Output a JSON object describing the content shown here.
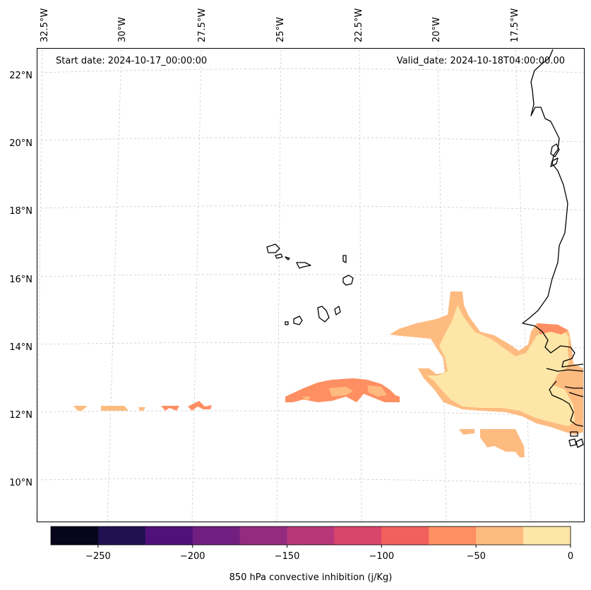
{
  "header": {
    "start_date": "Start date: 2024-10-17_00:00:00",
    "valid_date": "Valid_date: 2024-10-18T04:00:00.00"
  },
  "axes": {
    "longitude_labels": [
      "32.5°W",
      "30°W",
      "27.5°W",
      "25°W",
      "22.5°W",
      "20°W",
      "17.5°W"
    ],
    "latitude_labels": [
      "22°N",
      "20°N",
      "18°N",
      "16°N",
      "14°N",
      "12°N",
      "10°N"
    ]
  },
  "colorbar": {
    "title": "850 hPa convective inhibition (j/Kg)",
    "tick_labels": [
      "−250",
      "−200",
      "−150",
      "−100",
      "−50",
      "0"
    ],
    "levels": [
      -275,
      -250,
      -225,
      -200,
      -175,
      -150,
      -125,
      -100,
      -75,
      -50,
      -25,
      0
    ],
    "colors": [
      "#07051d",
      "#221150",
      "#4f117b",
      "#711f81",
      "#932b80",
      "#b73779",
      "#d9466b",
      "#f1605d",
      "#fe8f63",
      "#febb80",
      "#fde6a7"
    ]
  },
  "field_colors": {
    "level_-25_to_0": "#fde6a7",
    "level_-50_to_-25": "#febb80",
    "level_-75_to_-50": "#fe8f63"
  }
}
